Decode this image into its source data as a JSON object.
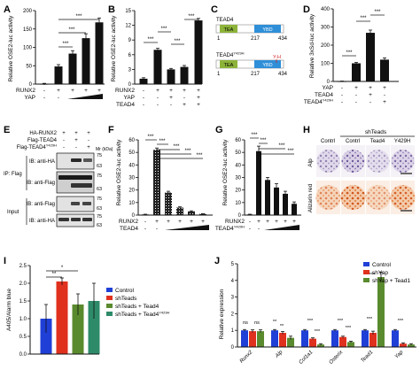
{
  "figure": {
    "panels": {
      "A": {
        "letter": "A",
        "ylabel": "Relative OSE2-luc activity",
        "yticks": [
          "0",
          "50",
          "100",
          "150",
          "200"
        ],
        "row_labels": [
          "RUNX2",
          "YAP"
        ],
        "runx2_signs": [
          "-",
          "+",
          "+",
          "+",
          "+"
        ],
        "yap_signs": [
          "-",
          "-",
          "",
          "",
          ""
        ],
        "sig": [
          "***",
          "***",
          "***"
        ]
      },
      "B": {
        "letter": "B",
        "ylabel": "Relative OSE2-luc activity",
        "yticks": [
          "0",
          "3",
          "6",
          "9",
          "12",
          "15"
        ],
        "row_labels": [
          "RUNX2",
          "YAP",
          "TEAD4"
        ],
        "runx2_signs": [
          "-",
          "+",
          "+",
          "+",
          "+"
        ],
        "yap_signs": [
          "-",
          "-",
          "+",
          "-",
          "+"
        ],
        "tead4_signs": [
          "-",
          "-",
          "-",
          "+",
          "+"
        ],
        "sig": [
          "***",
          "***",
          "***",
          "***"
        ]
      },
      "C": {
        "letter": "C",
        "top_name": "TEAD4",
        "bottom_name": "TEAD4",
        "bottom_sup": "Y429H",
        "tea": "TEA",
        "ybd": "YBD",
        "pos_start": "1",
        "pos_mid": "217",
        "pos_end": "434",
        "mutation": "Y-H"
      },
      "D": {
        "letter": "D",
        "ylabel": "Relative 3xSd-luc activity",
        "yticks": [
          "0",
          "100",
          "200",
          "300",
          "400"
        ],
        "row_labels": [
          "YAP",
          "TEAD4",
          "TEAD4"
        ],
        "row3_sup": "Y429H",
        "yap_signs": [
          "-",
          "+",
          "+",
          "+"
        ],
        "tead4_signs": [
          "-",
          "-",
          "+",
          "-"
        ],
        "tead4m_signs": [
          "-",
          "-",
          "-",
          "+"
        ],
        "sig": [
          "***",
          "***",
          "***"
        ]
      },
      "E": {
        "letter": "E",
        "row_labels": [
          "HA-RUNX2",
          "Flag-TEAD4",
          "Flag-TEAD4"
        ],
        "row3_sup": "Y429H",
        "runx2_signs": [
          "+",
          "+",
          "+"
        ],
        "tead4_signs": [
          "-",
          "+",
          "-"
        ],
        "tead4m_signs": [
          "-",
          "-",
          "+"
        ],
        "mr_label": "Mr (kDa)",
        "groups": [
          "IP: Flag",
          "Input"
        ],
        "blots": [
          "IB: anti-HA",
          "IB: anti-Flag",
          "IB: anti-Flag",
          "IB: anti-HA"
        ],
        "mw": [
          "75",
          "63",
          "75",
          "63",
          "75",
          "63",
          "75",
          "63"
        ]
      },
      "F": {
        "letter": "F",
        "ylabel": "Relative OSE2-luc activity",
        "yticks": [
          "0",
          "10",
          "20",
          "30",
          "40",
          "50",
          "60"
        ],
        "row_labels": [
          "RUNX2",
          "TEAD4"
        ],
        "runx2_signs": [
          "-",
          "+",
          "+",
          "+",
          "+",
          "+"
        ],
        "tead4_signs": [
          "-",
          "-",
          "",
          "",
          "",
          ""
        ],
        "sig": [
          "***",
          "***",
          "***",
          "***",
          "***"
        ]
      },
      "G": {
        "letter": "G",
        "ylabel": "Relative OSE2-luc activity",
        "yticks": [
          "0",
          "10",
          "20",
          "30",
          "40",
          "50",
          "60"
        ],
        "row_labels": [
          "RUNX2",
          "TEAD4"
        ],
        "row2_sup": "Y429H",
        "runx2_signs": [
          "-",
          "+",
          "+",
          "+",
          "+",
          "+"
        ],
        "tead4_signs": [
          "-",
          "-",
          "",
          "",
          "",
          ""
        ],
        "sig": [
          "***",
          "***",
          "***",
          "***"
        ]
      },
      "H": {
        "letter": "H",
        "group_label": "shTeads",
        "columns": [
          "Contrl",
          "Contrl",
          "Tead4",
          "Y429H"
        ],
        "rows": [
          "Alp",
          "Alizarin red"
        ]
      },
      "I": {
        "letter": "I",
        "ylabel": "A405/Alarm blue",
        "yticks": [
          "0.0",
          "0.5",
          "1.0",
          "1.5",
          "2.0",
          "2.5"
        ],
        "legend": [
          "Control",
          "shTeads",
          "shTeads + Tead4",
          "shTeads + Tead4"
        ],
        "legend_sup": "Y429H",
        "sig": [
          "**",
          "*"
        ]
      },
      "J": {
        "letter": "J",
        "ylabel": "Relative expression",
        "yticks": [
          "0",
          "1",
          "2",
          "3",
          "4",
          "5"
        ],
        "categories": [
          "Runx2",
          "Alp",
          "Col1a1",
          "Osterix",
          "Tead1",
          "Yap"
        ],
        "legend": [
          "Control",
          "shYap",
          "shYap + Tead1"
        ],
        "sig": [
          "ns",
          "ns",
          "**",
          "**",
          "***",
          "***",
          "***",
          "***",
          "***",
          "***",
          "***"
        ]
      }
    },
    "colors": {
      "blue": "#1f3fd6",
      "red": "#e0301e",
      "green": "#5a8a2e",
      "teal": "#2e8b6a",
      "bar": "#111111",
      "tea_domain": "#8db33a",
      "ybd_domain": "#2f8fd8"
    }
  },
  "chart_data": [
    {
      "panel": "A",
      "type": "bar",
      "categories": [
        "1",
        "2",
        "3",
        "4",
        "5"
      ],
      "values": [
        0,
        48,
        83,
        125,
        168
      ],
      "errors": [
        2,
        5,
        8,
        12,
        12
      ],
      "ylabel": "Relative OSE2-luc activity",
      "ylim": [
        0,
        200
      ]
    },
    {
      "panel": "B",
      "type": "bar",
      "categories": [
        "1",
        "2",
        "3",
        "4",
        "5"
      ],
      "values": [
        1.1,
        7.0,
        3.0,
        3.5,
        13.0
      ],
      "errors": [
        0.2,
        0.3,
        0.2,
        0.3,
        0.4
      ],
      "ylabel": "Relative OSE2-luc activity",
      "ylim": [
        0,
        15
      ]
    },
    {
      "panel": "D",
      "type": "bar",
      "categories": [
        "1",
        "2",
        "3",
        "4"
      ],
      "values": [
        0,
        100,
        268,
        120
      ],
      "errors": [
        2,
        5,
        15,
        10
      ],
      "ylabel": "Relative 3xSd-luc activity",
      "ylim": [
        0,
        400
      ]
    },
    {
      "panel": "F",
      "type": "bar",
      "categories": [
        "1",
        "2",
        "3",
        "4",
        "5",
        "6"
      ],
      "values": [
        0.5,
        52,
        18,
        6,
        3,
        1
      ],
      "errors": [
        0.2,
        1.5,
        1,
        0.6,
        0.4,
        0.2
      ],
      "ylabel": "Relative OSE2-luc activity",
      "ylim": [
        0,
        60
      ]
    },
    {
      "panel": "G",
      "type": "bar",
      "categories": [
        "1",
        "2",
        "3",
        "4",
        "5",
        "6"
      ],
      "values": [
        0.5,
        51,
        28,
        22,
        17,
        9
      ],
      "errors": [
        0.2,
        4,
        2,
        3,
        2,
        1.5
      ],
      "ylabel": "Relative OSE2-luc activity",
      "ylim": [
        0,
        60
      ]
    },
    {
      "panel": "I",
      "type": "bar",
      "categories": [
        "Control",
        "shTeads",
        "shTeads + Tead4",
        "shTeads + Tead4 Y429H"
      ],
      "values": [
        1.0,
        2.05,
        1.4,
        1.5
      ],
      "errors": [
        0.4,
        0.1,
        0.3,
        0.5
      ],
      "ylabel": "A405/Alarm blue",
      "ylim": [
        0,
        2.5
      ]
    },
    {
      "panel": "J",
      "type": "bar",
      "categories": [
        "Runx2",
        "Alp",
        "Col1a1",
        "Osterix",
        "Tead1",
        "Yap"
      ],
      "series": [
        {
          "name": "Control",
          "values": [
            1.0,
            1.0,
            1.0,
            1.0,
            1.0,
            1.0
          ],
          "errors": [
            0.05,
            0.05,
            0.05,
            0.05,
            0.05,
            0.05
          ]
        },
        {
          "name": "shYap",
          "values": [
            0.95,
            0.85,
            0.5,
            0.6,
            0.85,
            0.2
          ],
          "errors": [
            0.08,
            0.08,
            0.05,
            0.05,
            0.1,
            0.05
          ]
        },
        {
          "name": "shYap + Tead1",
          "values": [
            0.95,
            0.55,
            0.15,
            0.3,
            4.2,
            0.15
          ],
          "errors": [
            0.08,
            0.1,
            0.05,
            0.05,
            0.3,
            0.05
          ]
        }
      ],
      "ylabel": "Relative expression",
      "ylim": [
        0,
        5
      ]
    }
  ]
}
